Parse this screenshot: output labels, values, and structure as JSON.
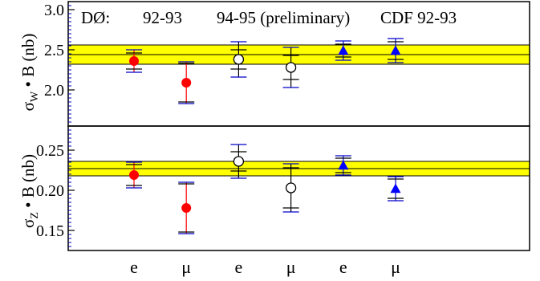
{
  "chart_data": [
    {
      "type": "scatter",
      "panel": "top",
      "ylabel_main": "σ",
      "ylabel_sub": "W",
      "ylabel_rest": " • B (nb)",
      "ylim": [
        1.55,
        3.1
      ],
      "yticks": [
        {
          "v": 2.0,
          "label": "2.0"
        },
        {
          "v": 2.5,
          "label": "2.5"
        },
        {
          "v": 3.0,
          "label": "3.0"
        }
      ],
      "band": {
        "low": 2.32,
        "high": 2.56,
        "center": 2.44,
        "color": "#ffff00"
      },
      "points": [
        {
          "x": 1,
          "y": 2.36,
          "err_stat": 0.1,
          "err_sys": 0.14,
          "marker": "filled-circle",
          "color": "#ff0000"
        },
        {
          "x": 2,
          "y": 2.09,
          "err_stat": 0.24,
          "err_sys": 0.26,
          "marker": "filled-circle",
          "color": "#ff0000"
        },
        {
          "x": 3,
          "y": 2.38,
          "err_stat": 0.12,
          "err_sys": 0.22,
          "marker": "open-circle",
          "color": "#000000"
        },
        {
          "x": 4,
          "y": 2.28,
          "err_stat": 0.15,
          "err_sys": 0.25,
          "marker": "open-circle",
          "color": "#000000"
        },
        {
          "x": 5,
          "y": 2.49,
          "err_stat": 0.08,
          "err_sys": 0.12,
          "marker": "triangle",
          "color": "#0000ff"
        },
        {
          "x": 6,
          "y": 2.49,
          "err_stat": 0.11,
          "err_sys": 0.15,
          "marker": "triangle",
          "color": "#0000ff"
        }
      ]
    },
    {
      "type": "scatter",
      "panel": "bottom",
      "ylabel_main": "σ",
      "ylabel_sub": "Z",
      "ylabel_rest": " • B (nb)",
      "ylim": [
        0.125,
        0.28
      ],
      "yticks": [
        {
          "v": 0.15,
          "label": "0.15"
        },
        {
          "v": 0.2,
          "label": "0.20"
        },
        {
          "v": 0.25,
          "label": "0.25"
        }
      ],
      "band": {
        "low": 0.218,
        "high": 0.236,
        "center": 0.227,
        "color": "#ffff00"
      },
      "points": [
        {
          "x": 1,
          "y": 0.219,
          "err_stat": 0.013,
          "err_sys": 0.016,
          "marker": "filled-circle",
          "color": "#ff0000"
        },
        {
          "x": 2,
          "y": 0.178,
          "err_stat": 0.03,
          "err_sys": 0.032,
          "marker": "filled-circle",
          "color": "#ff0000"
        },
        {
          "x": 3,
          "y": 0.236,
          "err_stat": 0.012,
          "err_sys": 0.021,
          "marker": "open-circle",
          "color": "#000000"
        },
        {
          "x": 4,
          "y": 0.203,
          "err_stat": 0.025,
          "err_sys": 0.03,
          "marker": "open-circle",
          "color": "#000000"
        },
        {
          "x": 5,
          "y": 0.231,
          "err_stat": 0.009,
          "err_sys": 0.012,
          "marker": "triangle",
          "color": "#0000ff"
        },
        {
          "x": 6,
          "y": 0.202,
          "err_stat": 0.012,
          "err_sys": 0.015,
          "marker": "triangle",
          "color": "#0000ff"
        }
      ]
    }
  ],
  "header": {
    "experiment": "DØ:",
    "set1": "92-93",
    "set2": "94-95 (preliminary)",
    "set3": "CDF 92-93"
  },
  "x_categories": [
    "e",
    "μ",
    "e",
    "μ",
    "e",
    "μ"
  ],
  "colors": {
    "band": "#ffff00",
    "d0_9293": "#ff0000",
    "d0_9495": "#000000",
    "cdf": "#0000ff",
    "tick_blue": "#0000cc"
  }
}
